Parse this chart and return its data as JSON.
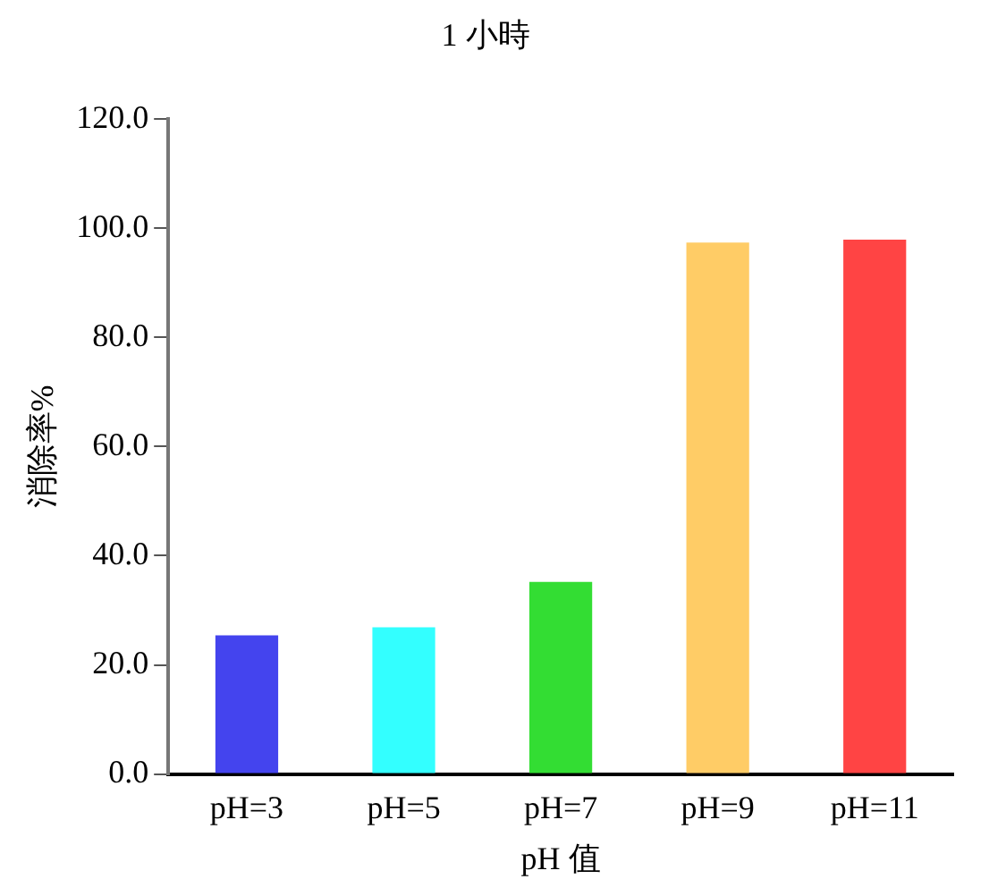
{
  "chart_data": {
    "type": "bar",
    "title": "1 小時",
    "xlabel": "pH 值",
    "ylabel": "消除率%",
    "categories": [
      "pH=3",
      "pH=5",
      "pH=7",
      "pH=9",
      "pH=11"
    ],
    "values": [
      25.4,
      26.9,
      35.2,
      97.4,
      97.9
    ],
    "colors": [
      "#4444ee",
      "#33ffff",
      "#33dd33",
      "#ffcc66",
      "#ff4444"
    ],
    "ylim": [
      0,
      120
    ],
    "yticks": [
      {
        "value": 0,
        "label": "0.0"
      },
      {
        "value": 20,
        "label": "20.0"
      },
      {
        "value": 40,
        "label": "40.0"
      },
      {
        "value": 60,
        "label": "60.0"
      },
      {
        "value": 80,
        "label": "80.0"
      },
      {
        "value": 100,
        "label": "100.0"
      },
      {
        "value": 120,
        "label": "120.0"
      }
    ],
    "grid": false,
    "legend": false
  }
}
